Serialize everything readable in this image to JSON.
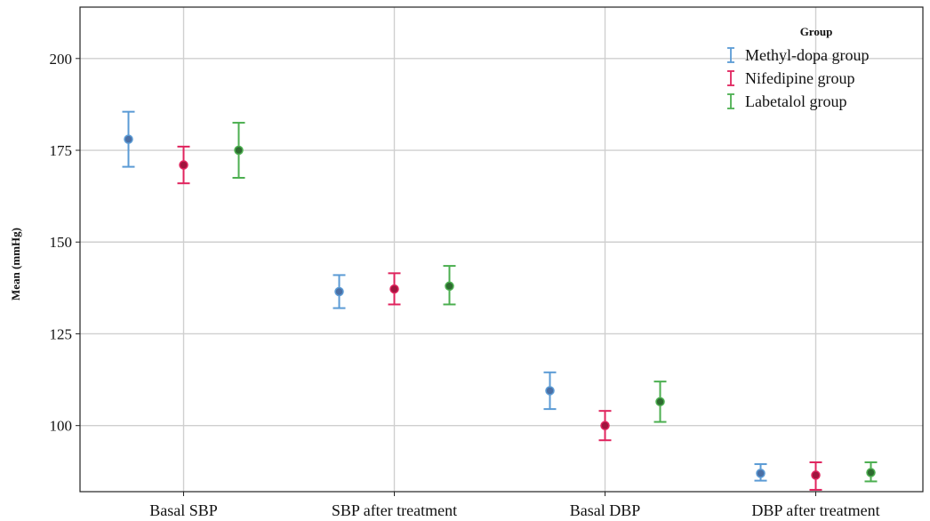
{
  "chart_data": {
    "type": "errorbar",
    "ylabel": "Mean (mmHg)",
    "ylim": [
      82,
      214
    ],
    "yticks": [
      100,
      125,
      150,
      175,
      200
    ],
    "grid": true,
    "legend_title": "Group",
    "legend_position": "top-right",
    "categories": [
      "Basal SBP",
      "SBP after treatment",
      "Basal DBP",
      "DBP after treatment"
    ],
    "series": [
      {
        "name": "Methyl-dopa group",
        "color": "#5b9bd5",
        "marker_color": "#4a6fa5",
        "mean": [
          178,
          136.5,
          109.5,
          87
        ],
        "lower": [
          170.5,
          132,
          104.5,
          85
        ],
        "upper": [
          185.5,
          141,
          114.5,
          89.5
        ]
      },
      {
        "name": "Nifedipine group",
        "color": "#e0245e",
        "marker_color": "#a0153e",
        "mean": [
          171,
          137.2,
          100,
          86.5
        ],
        "lower": [
          166,
          133,
          96,
          82.5
        ],
        "upper": [
          176,
          141.5,
          104,
          90
        ]
      },
      {
        "name": "Labetalol group",
        "color": "#4caf50",
        "marker_color": "#2e6b30",
        "mean": [
          175,
          138,
          106.5,
          87.2
        ],
        "lower": [
          167.5,
          133,
          101,
          84.8
        ],
        "upper": [
          182.5,
          143.5,
          112,
          90
        ]
      }
    ]
  }
}
